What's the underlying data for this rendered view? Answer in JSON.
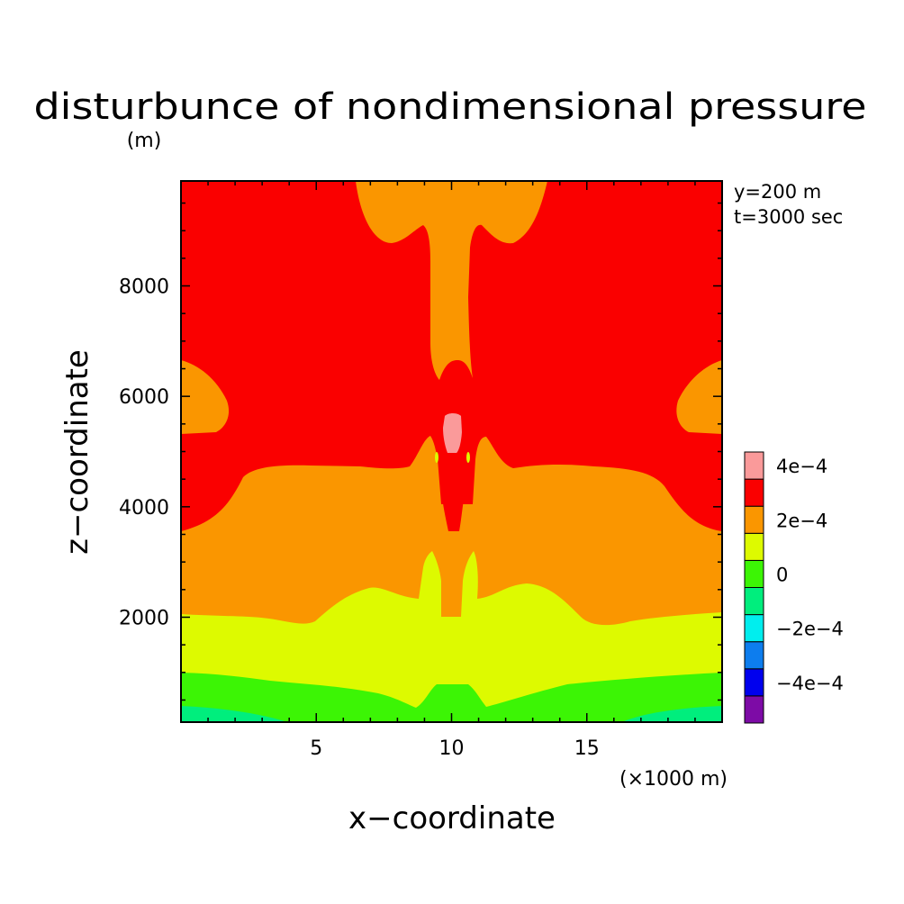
{
  "chart_data": {
    "type": "contour",
    "title": "disturbunce of nondimensional pressure",
    "ylabel_unit": "(m)",
    "xlabel": "x−coordinate",
    "ylabel": "z−coordinate",
    "x_unit": "(×1000 m)",
    "annotations": [
      "y=200 m",
      "t=3000 sec"
    ],
    "xlim": [
      0,
      20
    ],
    "ylim": [
      100,
      9900
    ],
    "xticks": [
      5,
      10,
      15
    ],
    "xtick_labels": [
      "5",
      "10",
      "15"
    ],
    "yticks": [
      2000,
      4000,
      6000,
      8000
    ],
    "ytick_labels": [
      "2000",
      "4000",
      "6000",
      "8000"
    ],
    "grid": false,
    "legend_position": "right",
    "colorbar": {
      "colors": [
        "#7d0ba6",
        "#0000ee",
        "#0d7dee",
        "#00eeee",
        "#00ee7d",
        "#3cf505",
        "#ddfa00",
        "#fa9600",
        "#fa0000",
        "#fa9a9a"
      ],
      "labels": [
        "−4e−4",
        "−2e−4",
        "0",
        "2e−4",
        "4e−4"
      ]
    },
    "levels_present": [
      {
        "color": "#00ee7d",
        "region": "near surface, x≈0–5 and x≈16–20, z<300"
      },
      {
        "color": "#3cf505",
        "region": "z≈100–1000"
      },
      {
        "color": "#ddfa00",
        "region": "z≈1000–2100"
      },
      {
        "color": "#fa9600",
        "region": "z≈2100–4800, upper central plume and side lobes near z≈6000"
      },
      {
        "color": "#fa0000",
        "region": "upper domain z>4800, central column z≈3600–5000"
      },
      {
        "color": "#fa9a9a",
        "region": "small core at x≈10, z≈5200–5600"
      }
    ]
  }
}
